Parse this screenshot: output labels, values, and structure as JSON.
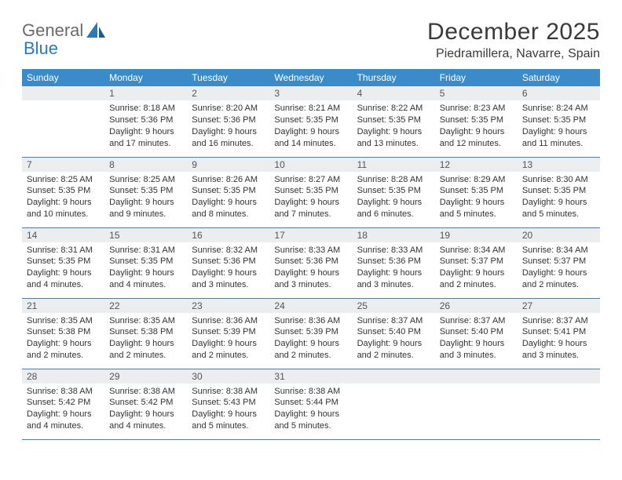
{
  "brand": {
    "word1": "General",
    "word2": "Blue"
  },
  "title": {
    "month": "December 2025",
    "location": "Piedramillera, Navarre, Spain"
  },
  "colors": {
    "header_bg": "#3b8bc8",
    "header_text": "#ffffff",
    "band_bg": "#ebedef",
    "row_border": "#5a7a99",
    "logo_gray": "#6b6b6b",
    "logo_blue": "#2a7ab8"
  },
  "day_headers": [
    "Sunday",
    "Monday",
    "Tuesday",
    "Wednesday",
    "Thursday",
    "Friday",
    "Saturday"
  ],
  "weeks": [
    [
      {
        "n": "",
        "lines": []
      },
      {
        "n": "1",
        "lines": [
          "Sunrise: 8:18 AM",
          "Sunset: 5:36 PM",
          "Daylight: 9 hours and 17 minutes."
        ]
      },
      {
        "n": "2",
        "lines": [
          "Sunrise: 8:20 AM",
          "Sunset: 5:36 PM",
          "Daylight: 9 hours and 16 minutes."
        ]
      },
      {
        "n": "3",
        "lines": [
          "Sunrise: 8:21 AM",
          "Sunset: 5:35 PM",
          "Daylight: 9 hours and 14 minutes."
        ]
      },
      {
        "n": "4",
        "lines": [
          "Sunrise: 8:22 AM",
          "Sunset: 5:35 PM",
          "Daylight: 9 hours and 13 minutes."
        ]
      },
      {
        "n": "5",
        "lines": [
          "Sunrise: 8:23 AM",
          "Sunset: 5:35 PM",
          "Daylight: 9 hours and 12 minutes."
        ]
      },
      {
        "n": "6",
        "lines": [
          "Sunrise: 8:24 AM",
          "Sunset: 5:35 PM",
          "Daylight: 9 hours and 11 minutes."
        ]
      }
    ],
    [
      {
        "n": "7",
        "lines": [
          "Sunrise: 8:25 AM",
          "Sunset: 5:35 PM",
          "Daylight: 9 hours and 10 minutes."
        ]
      },
      {
        "n": "8",
        "lines": [
          "Sunrise: 8:25 AM",
          "Sunset: 5:35 PM",
          "Daylight: 9 hours and 9 minutes."
        ]
      },
      {
        "n": "9",
        "lines": [
          "Sunrise: 8:26 AM",
          "Sunset: 5:35 PM",
          "Daylight: 9 hours and 8 minutes."
        ]
      },
      {
        "n": "10",
        "lines": [
          "Sunrise: 8:27 AM",
          "Sunset: 5:35 PM",
          "Daylight: 9 hours and 7 minutes."
        ]
      },
      {
        "n": "11",
        "lines": [
          "Sunrise: 8:28 AM",
          "Sunset: 5:35 PM",
          "Daylight: 9 hours and 6 minutes."
        ]
      },
      {
        "n": "12",
        "lines": [
          "Sunrise: 8:29 AM",
          "Sunset: 5:35 PM",
          "Daylight: 9 hours and 5 minutes."
        ]
      },
      {
        "n": "13",
        "lines": [
          "Sunrise: 8:30 AM",
          "Sunset: 5:35 PM",
          "Daylight: 9 hours and 5 minutes."
        ]
      }
    ],
    [
      {
        "n": "14",
        "lines": [
          "Sunrise: 8:31 AM",
          "Sunset: 5:35 PM",
          "Daylight: 9 hours and 4 minutes."
        ]
      },
      {
        "n": "15",
        "lines": [
          "Sunrise: 8:31 AM",
          "Sunset: 5:35 PM",
          "Daylight: 9 hours and 4 minutes."
        ]
      },
      {
        "n": "16",
        "lines": [
          "Sunrise: 8:32 AM",
          "Sunset: 5:36 PM",
          "Daylight: 9 hours and 3 minutes."
        ]
      },
      {
        "n": "17",
        "lines": [
          "Sunrise: 8:33 AM",
          "Sunset: 5:36 PM",
          "Daylight: 9 hours and 3 minutes."
        ]
      },
      {
        "n": "18",
        "lines": [
          "Sunrise: 8:33 AM",
          "Sunset: 5:36 PM",
          "Daylight: 9 hours and 3 minutes."
        ]
      },
      {
        "n": "19",
        "lines": [
          "Sunrise: 8:34 AM",
          "Sunset: 5:37 PM",
          "Daylight: 9 hours and 2 minutes."
        ]
      },
      {
        "n": "20",
        "lines": [
          "Sunrise: 8:34 AM",
          "Sunset: 5:37 PM",
          "Daylight: 9 hours and 2 minutes."
        ]
      }
    ],
    [
      {
        "n": "21",
        "lines": [
          "Sunrise: 8:35 AM",
          "Sunset: 5:38 PM",
          "Daylight: 9 hours and 2 minutes."
        ]
      },
      {
        "n": "22",
        "lines": [
          "Sunrise: 8:35 AM",
          "Sunset: 5:38 PM",
          "Daylight: 9 hours and 2 minutes."
        ]
      },
      {
        "n": "23",
        "lines": [
          "Sunrise: 8:36 AM",
          "Sunset: 5:39 PM",
          "Daylight: 9 hours and 2 minutes."
        ]
      },
      {
        "n": "24",
        "lines": [
          "Sunrise: 8:36 AM",
          "Sunset: 5:39 PM",
          "Daylight: 9 hours and 2 minutes."
        ]
      },
      {
        "n": "25",
        "lines": [
          "Sunrise: 8:37 AM",
          "Sunset: 5:40 PM",
          "Daylight: 9 hours and 2 minutes."
        ]
      },
      {
        "n": "26",
        "lines": [
          "Sunrise: 8:37 AM",
          "Sunset: 5:40 PM",
          "Daylight: 9 hours and 3 minutes."
        ]
      },
      {
        "n": "27",
        "lines": [
          "Sunrise: 8:37 AM",
          "Sunset: 5:41 PM",
          "Daylight: 9 hours and 3 minutes."
        ]
      }
    ],
    [
      {
        "n": "28",
        "lines": [
          "Sunrise: 8:38 AM",
          "Sunset: 5:42 PM",
          "Daylight: 9 hours and 4 minutes."
        ]
      },
      {
        "n": "29",
        "lines": [
          "Sunrise: 8:38 AM",
          "Sunset: 5:42 PM",
          "Daylight: 9 hours and 4 minutes."
        ]
      },
      {
        "n": "30",
        "lines": [
          "Sunrise: 8:38 AM",
          "Sunset: 5:43 PM",
          "Daylight: 9 hours and 5 minutes."
        ]
      },
      {
        "n": "31",
        "lines": [
          "Sunrise: 8:38 AM",
          "Sunset: 5:44 PM",
          "Daylight: 9 hours and 5 minutes."
        ]
      },
      {
        "n": "",
        "lines": []
      },
      {
        "n": "",
        "lines": []
      },
      {
        "n": "",
        "lines": []
      }
    ]
  ]
}
